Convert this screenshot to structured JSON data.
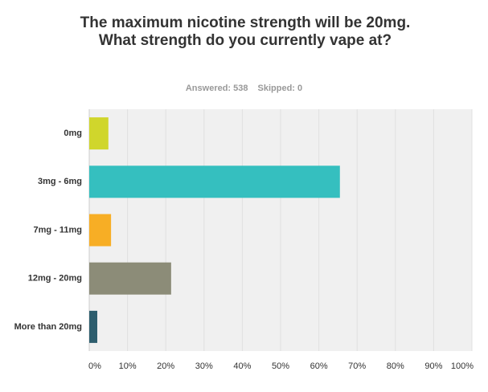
{
  "chart_data": {
    "type": "hbar",
    "title": "The maximum nicotine strength will be 20mg. What strength do you currently vape at?",
    "answered": "Answered: 538",
    "skipped": "Skipped: 0",
    "categories": [
      "0mg",
      "3mg - 6mg",
      "7mg - 11mg",
      "12mg - 20mg",
      "More than 20mg"
    ],
    "values": [
      5.0,
      65.5,
      5.7,
      21.4,
      2.1
    ],
    "colors": [
      "#d0d62c",
      "#35bfbf",
      "#f7ae25",
      "#8c8c78",
      "#2e5e6e"
    ],
    "xlim": [
      0,
      100
    ],
    "xticks": [
      {
        "value": 0,
        "label": "0%"
      },
      {
        "value": 10,
        "label": "10%"
      },
      {
        "value": 20,
        "label": "20%"
      },
      {
        "value": 30,
        "label": "30%"
      },
      {
        "value": 40,
        "label": "40%"
      },
      {
        "value": 50,
        "label": "50%"
      },
      {
        "value": 60,
        "label": "60%"
      },
      {
        "value": 70,
        "label": "70%"
      },
      {
        "value": 80,
        "label": "80%"
      },
      {
        "value": 90,
        "label": "90%"
      },
      {
        "value": 100,
        "label": "100%"
      }
    ],
    "grid": true
  }
}
